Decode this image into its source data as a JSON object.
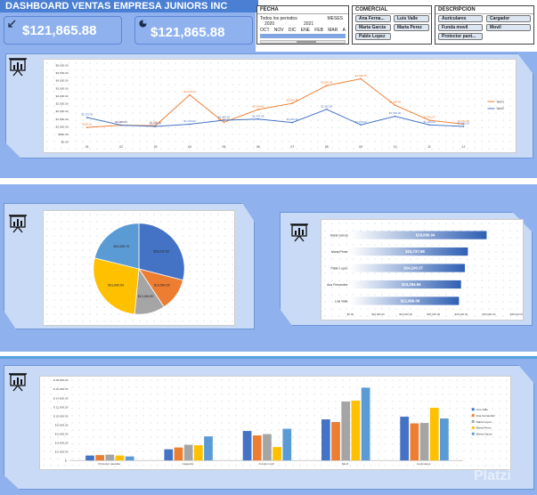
{
  "header": {
    "title": "DASHBOARD VENTAS EMPRESA JUNIORS INC"
  },
  "kpis": [
    {
      "value": "$121,865.88",
      "icon": "arrow-down-left-icon"
    },
    {
      "value": "$121,865.88",
      "icon": "pie-icon"
    }
  ],
  "slicers": {
    "fecha": {
      "title": "FECHA",
      "subtitle": "Todos los periodos",
      "unit": "MESES",
      "years": [
        "2020",
        "2021"
      ],
      "months": [
        "OCT",
        "NOV",
        "DIC",
        "ENE",
        "FEB",
        "MAR",
        "A"
      ]
    },
    "comercial": {
      "title": "COMERCIAL",
      "items": [
        "Ana Ferna...",
        "Luis Valle",
        "Maria Garcia",
        "Maria Perez",
        "Pablo Lopez"
      ]
    },
    "descripcion": {
      "title": "DESCRIPCION",
      "items": [
        "Auriculares",
        "Cargador",
        "Funda movil",
        "Movil",
        "Protector pant..."
      ]
    }
  },
  "line_labels": {
    "series_a": [
      "$930.00",
      "$1,080.00",
      "$1,050.00",
      "$3,045.00",
      "$1,267.15",
      "$2,099.65",
      "$2,500.45",
      "$3,650.45",
      "$4,095.00",
      "$2,380.00",
      "$1,400.00",
      "$1,150.00"
    ],
    "series_b": [
      "$1,575.00",
      "$1,080.00",
      "$1,000.00",
      "$1,140.00",
      "$1,400.00",
      "$1,476.45",
      "$1,250.00",
      "$2,110.00",
      "$1,100.00",
      "$1,654.00",
      "$1,100.00",
      "$1,000.00"
    ]
  },
  "chart_data": [
    {
      "type": "line",
      "x": [
        "01",
        "02",
        "03",
        "04",
        "05",
        "06",
        "07",
        "08",
        "09",
        "10",
        "11",
        "12"
      ],
      "series": [
        {
          "name": "Vent1",
          "values": [
            930,
            1080,
            1050,
            3045,
            1267.15,
            2099.65,
            2500.45,
            3650.45,
            4095,
            2380,
            1400,
            1150
          ],
          "color": "#ed7d31"
        },
        {
          "name": "Vent2",
          "values": [
            1575,
            1080,
            1000,
            1140,
            1400,
            1476.45,
            1250,
            2110,
            1100,
            1654,
            1100,
            1000
          ],
          "color": "#4472c4"
        }
      ],
      "y_ticks": [
        "$5,000.00",
        "$4,500.00",
        "$4,000.00",
        "$3,500.00",
        "$3,000.00",
        "$2,500.00",
        "$2,000.00",
        "$1,500.00",
        "$1,000.00",
        "$500.00",
        "$0.00"
      ],
      "ylim": [
        0,
        5000
      ],
      "legend": "right"
    },
    {
      "type": "pie",
      "values": [
        33610.5,
        13594.25,
        12484.5,
        31640.54,
        24535.7
      ],
      "labels": [
        "$33,610.50",
        "$13,594.25",
        "$12,484.50",
        "$31,640.54",
        "$24,535.70"
      ],
      "colors": [
        "#4472c4",
        "#ed7d31",
        "#a5a5a5",
        "#ffc000",
        "#5b9bd5"
      ]
    },
    {
      "type": "bar",
      "orientation": "horizontal",
      "categories": [
        "Maria Garcia",
        "Maria Perez",
        "Pablo Lopez",
        "Ana Fernandez",
        "Luis Valle"
      ],
      "values": [
        28686.04,
        24737.98,
        24100.37,
        23294.65,
        22866.08
      ],
      "labels": [
        "$28,686.04",
        "$24,737.98",
        "$24,100.37",
        "$23,294.65",
        "$22,866.08"
      ],
      "x_ticks": [
        "$0.00",
        "$10,000.00",
        "$15,000.00",
        "$20,000.00",
        "$25,000.00",
        "$30,000.00",
        "$35,000.00"
      ],
      "xlim": [
        0,
        35000
      ]
    },
    {
      "type": "bar",
      "categories": [
        "Protector pantalla",
        "Cargador",
        "Funda movil",
        "Movil",
        "Auriculares"
      ],
      "series": [
        {
          "name": "Luis Valle",
          "values": [
            1100,
            2500,
            6600,
            9200,
            9800
          ],
          "color": "#4472c4"
        },
        {
          "name": "Ana Fernandez",
          "values": [
            1200,
            2900,
            5600,
            8600,
            8300
          ],
          "color": "#ed7d31"
        },
        {
          "name": "Pablo Lopez",
          "values": [
            1300,
            3500,
            5900,
            13200,
            8400
          ],
          "color": "#a5a5a5"
        },
        {
          "name": "Maria Perez",
          "values": [
            1100,
            3400,
            3000,
            13400,
            11800
          ],
          "color": "#ffc000"
        },
        {
          "name": "Maria Garcia",
          "values": [
            900,
            5400,
            7100,
            16300,
            9400
          ],
          "color": "#5b9bd5"
        }
      ],
      "y_ticks": [
        "$ 18,000.00",
        "$ 16,000.00",
        "$ 14,000.00",
        "$ 12,000.00",
        "$ 10,000.00",
        "$ 8,000.00",
        "$ 6,000.00",
        "$ 4,000.00",
        "$ 2,000.00",
        "$ -"
      ],
      "ylim": [
        0,
        18000
      ],
      "legend": "right"
    }
  ],
  "watermark": "Platzi"
}
